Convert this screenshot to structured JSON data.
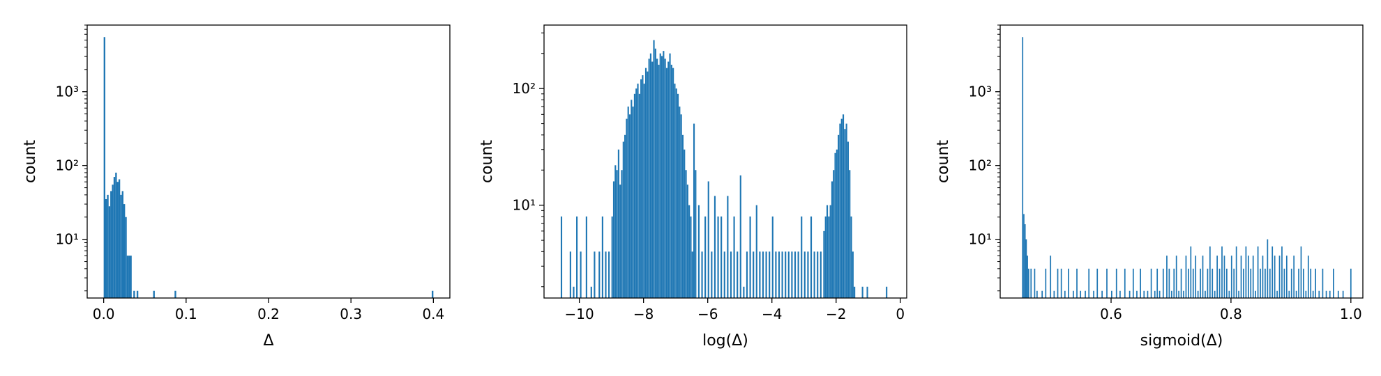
{
  "chart_data": [
    {
      "type": "bar",
      "subtype": "histogram",
      "title": "",
      "xlabel": "Δ",
      "ylabel": "count",
      "yscale": "log",
      "xlim": [
        -0.02,
        0.42
      ],
      "ylim": [
        1.6,
        8000
      ],
      "xticks": [
        0.0,
        0.1,
        0.2,
        0.3,
        0.4
      ],
      "xtick_labels": [
        "0.0",
        "0.1",
        "0.2",
        "0.3",
        "0.4"
      ],
      "yticks": [
        10,
        100,
        1000
      ],
      "ytick_labels": [
        "10¹",
        "10²",
        "10³"
      ],
      "color": "#1f77b4",
      "grid": false,
      "bin_width": 0.002,
      "bins": [
        [
          0.0,
          5500
        ],
        [
          0.002,
          35
        ],
        [
          0.004,
          40
        ],
        [
          0.006,
          28
        ],
        [
          0.008,
          45
        ],
        [
          0.01,
          55
        ],
        [
          0.012,
          70
        ],
        [
          0.014,
          80
        ],
        [
          0.016,
          60
        ],
        [
          0.018,
          65
        ],
        [
          0.02,
          40
        ],
        [
          0.022,
          45
        ],
        [
          0.024,
          30
        ],
        [
          0.026,
          20
        ],
        [
          0.028,
          6
        ],
        [
          0.03,
          6
        ],
        [
          0.032,
          6
        ],
        [
          0.036,
          2
        ],
        [
          0.04,
          2
        ],
        [
          0.06,
          2
        ],
        [
          0.086,
          2
        ],
        [
          0.398,
          2
        ]
      ]
    },
    {
      "type": "bar",
      "subtype": "histogram",
      "title": "",
      "xlabel": "log(Δ)",
      "ylabel": "count",
      "yscale": "log",
      "xlim": [
        -11.1,
        0.2
      ],
      "ylim": [
        1.6,
        350
      ],
      "xticks": [
        -10,
        -8,
        -6,
        -4,
        -2,
        0
      ],
      "xtick_labels": [
        "−10",
        "−8",
        "−6",
        "−4",
        "−2",
        "0"
      ],
      "yticks": [
        10,
        100
      ],
      "ytick_labels": [
        "10¹",
        "10²"
      ],
      "color": "#1f77b4",
      "grid": false,
      "bin_width": 0.0465,
      "bins": [
        [
          -10.58,
          8
        ],
        [
          -10.3,
          4
        ],
        [
          -10.2,
          2
        ],
        [
          -10.1,
          8
        ],
        [
          -9.98,
          4
        ],
        [
          -9.8,
          8
        ],
        [
          -9.65,
          2
        ],
        [
          -9.55,
          4
        ],
        [
          -9.4,
          4
        ],
        [
          -9.3,
          8
        ],
        [
          -9.2,
          4
        ],
        [
          -9.1,
          4
        ],
        [
          -9.0,
          8
        ],
        [
          -8.95,
          16
        ],
        [
          -8.9,
          22
        ],
        [
          -8.85,
          20
        ],
        [
          -8.8,
          30
        ],
        [
          -8.75,
          15
        ],
        [
          -8.7,
          20
        ],
        [
          -8.65,
          35
        ],
        [
          -8.6,
          40
        ],
        [
          -8.55,
          55
        ],
        [
          -8.5,
          70
        ],
        [
          -8.45,
          60
        ],
        [
          -8.4,
          80
        ],
        [
          -8.35,
          70
        ],
        [
          -8.3,
          90
        ],
        [
          -8.25,
          100
        ],
        [
          -8.2,
          110
        ],
        [
          -8.15,
          90
        ],
        [
          -8.1,
          120
        ],
        [
          -8.05,
          130
        ],
        [
          -8.0,
          110
        ],
        [
          -7.95,
          150
        ],
        [
          -7.9,
          140
        ],
        [
          -7.85,
          180
        ],
        [
          -7.8,
          200
        ],
        [
          -7.75,
          170
        ],
        [
          -7.7,
          260
        ],
        [
          -7.65,
          220
        ],
        [
          -7.6,
          180
        ],
        [
          -7.55,
          160
        ],
        [
          -7.5,
          200
        ],
        [
          -7.45,
          190
        ],
        [
          -7.4,
          210
        ],
        [
          -7.35,
          180
        ],
        [
          -7.3,
          150
        ],
        [
          -7.25,
          170
        ],
        [
          -7.2,
          200
        ],
        [
          -7.15,
          160
        ],
        [
          -7.1,
          150
        ],
        [
          -7.05,
          110
        ],
        [
          -7.0,
          100
        ],
        [
          -6.95,
          90
        ],
        [
          -6.9,
          70
        ],
        [
          -6.85,
          60
        ],
        [
          -6.8,
          40
        ],
        [
          -6.75,
          30
        ],
        [
          -6.7,
          20
        ],
        [
          -6.65,
          15
        ],
        [
          -6.6,
          10
        ],
        [
          -6.55,
          8
        ],
        [
          -6.5,
          4
        ],
        [
          -6.45,
          50
        ],
        [
          -6.4,
          20
        ],
        [
          -6.3,
          10
        ],
        [
          -6.2,
          4
        ],
        [
          -6.1,
          8
        ],
        [
          -6.0,
          16
        ],
        [
          -5.9,
          4
        ],
        [
          -5.8,
          12
        ],
        [
          -5.7,
          8
        ],
        [
          -5.6,
          8
        ],
        [
          -5.5,
          4
        ],
        [
          -5.4,
          12
        ],
        [
          -5.3,
          4
        ],
        [
          -5.2,
          8
        ],
        [
          -5.1,
          4
        ],
        [
          -5.0,
          18
        ],
        [
          -4.9,
          2
        ],
        [
          -4.8,
          4
        ],
        [
          -4.7,
          8
        ],
        [
          -4.6,
          4
        ],
        [
          -4.5,
          10
        ],
        [
          -4.4,
          4
        ],
        [
          -4.3,
          4
        ],
        [
          -4.2,
          4
        ],
        [
          -4.1,
          4
        ],
        [
          -4.0,
          8
        ],
        [
          -3.9,
          4
        ],
        [
          -3.8,
          4
        ],
        [
          -3.7,
          4
        ],
        [
          -3.6,
          4
        ],
        [
          -3.5,
          4
        ],
        [
          -3.4,
          4
        ],
        [
          -3.3,
          4
        ],
        [
          -3.2,
          4
        ],
        [
          -3.1,
          8
        ],
        [
          -3.0,
          4
        ],
        [
          -2.9,
          4
        ],
        [
          -2.8,
          8
        ],
        [
          -2.7,
          4
        ],
        [
          -2.6,
          4
        ],
        [
          -2.5,
          4
        ],
        [
          -2.4,
          6
        ],
        [
          -2.35,
          8
        ],
        [
          -2.3,
          10
        ],
        [
          -2.25,
          8
        ],
        [
          -2.2,
          10
        ],
        [
          -2.15,
          16
        ],
        [
          -2.1,
          20
        ],
        [
          -2.05,
          28
        ],
        [
          -2.0,
          30
        ],
        [
          -1.95,
          40
        ],
        [
          -1.9,
          50
        ],
        [
          -1.85,
          55
        ],
        [
          -1.8,
          60
        ],
        [
          -1.75,
          45
        ],
        [
          -1.7,
          50
        ],
        [
          -1.65,
          35
        ],
        [
          -1.6,
          20
        ],
        [
          -1.55,
          8
        ],
        [
          -1.5,
          4
        ],
        [
          -1.45,
          2
        ],
        [
          -1.2,
          2
        ],
        [
          -1.05,
          2
        ],
        [
          -0.45,
          2
        ]
      ]
    },
    {
      "type": "bar",
      "subtype": "histogram",
      "title": "",
      "xlabel": "sigmoid(Δ)",
      "ylabel": "count",
      "yscale": "log",
      "xlim": [
        0.415,
        1.02
      ],
      "ylim": [
        1.6,
        8000
      ],
      "xticks": [
        0.6,
        0.8,
        1.0
      ],
      "xtick_labels": [
        "0.6",
        "0.8",
        "1.0"
      ],
      "yticks": [
        10,
        100,
        1000
      ],
      "ytick_labels": [
        "10¹",
        "10²",
        "10³"
      ],
      "color": "#1f77b4",
      "grid": false,
      "bin_width": 0.002,
      "bins": [
        [
          0.4515,
          5500
        ],
        [
          0.4535,
          22
        ],
        [
          0.4555,
          16
        ],
        [
          0.4575,
          10
        ],
        [
          0.4595,
          6
        ],
        [
          0.4615,
          4
        ],
        [
          0.4655,
          4
        ],
        [
          0.4715,
          4
        ],
        [
          0.4755,
          2
        ],
        [
          0.484,
          2
        ],
        [
          0.49,
          4
        ],
        [
          0.498,
          6
        ],
        [
          0.504,
          2
        ],
        [
          0.51,
          4
        ],
        [
          0.516,
          4
        ],
        [
          0.522,
          2
        ],
        [
          0.528,
          4
        ],
        [
          0.536,
          2
        ],
        [
          0.542,
          4
        ],
        [
          0.548,
          2
        ],
        [
          0.556,
          2
        ],
        [
          0.562,
          4
        ],
        [
          0.57,
          2
        ],
        [
          0.576,
          4
        ],
        [
          0.584,
          2
        ],
        [
          0.592,
          4
        ],
        [
          0.6,
          2
        ],
        [
          0.608,
          4
        ],
        [
          0.614,
          2
        ],
        [
          0.622,
          4
        ],
        [
          0.63,
          2
        ],
        [
          0.636,
          4
        ],
        [
          0.642,
          2
        ],
        [
          0.648,
          4
        ],
        [
          0.654,
          2
        ],
        [
          0.66,
          2
        ],
        [
          0.666,
          4
        ],
        [
          0.672,
          2
        ],
        [
          0.676,
          4
        ],
        [
          0.68,
          2
        ],
        [
          0.686,
          4
        ],
        [
          0.692,
          6
        ],
        [
          0.696,
          4
        ],
        [
          0.7,
          2
        ],
        [
          0.704,
          4
        ],
        [
          0.708,
          6
        ],
        [
          0.712,
          2
        ],
        [
          0.716,
          4
        ],
        [
          0.72,
          2
        ],
        [
          0.724,
          6
        ],
        [
          0.728,
          4
        ],
        [
          0.732,
          8
        ],
        [
          0.736,
          4
        ],
        [
          0.74,
          6
        ],
        [
          0.744,
          2
        ],
        [
          0.748,
          4
        ],
        [
          0.752,
          6
        ],
        [
          0.756,
          2
        ],
        [
          0.76,
          4
        ],
        [
          0.764,
          8
        ],
        [
          0.768,
          4
        ],
        [
          0.772,
          2
        ],
        [
          0.776,
          6
        ],
        [
          0.78,
          4
        ],
        [
          0.784,
          8
        ],
        [
          0.788,
          6
        ],
        [
          0.792,
          4
        ],
        [
          0.796,
          2
        ],
        [
          0.8,
          6
        ],
        [
          0.804,
          4
        ],
        [
          0.808,
          8
        ],
        [
          0.812,
          2
        ],
        [
          0.816,
          6
        ],
        [
          0.82,
          4
        ],
        [
          0.824,
          8
        ],
        [
          0.828,
          6
        ],
        [
          0.832,
          4
        ],
        [
          0.836,
          6
        ],
        [
          0.84,
          2
        ],
        [
          0.844,
          8
        ],
        [
          0.848,
          4
        ],
        [
          0.852,
          6
        ],
        [
          0.856,
          4
        ],
        [
          0.86,
          10
        ],
        [
          0.864,
          4
        ],
        [
          0.868,
          8
        ],
        [
          0.872,
          6
        ],
        [
          0.876,
          2
        ],
        [
          0.88,
          6
        ],
        [
          0.884,
          8
        ],
        [
          0.888,
          4
        ],
        [
          0.892,
          6
        ],
        [
          0.896,
          2
        ],
        [
          0.9,
          4
        ],
        [
          0.904,
          6
        ],
        [
          0.908,
          2
        ],
        [
          0.912,
          4
        ],
        [
          0.916,
          8
        ],
        [
          0.92,
          4
        ],
        [
          0.924,
          2
        ],
        [
          0.928,
          6
        ],
        [
          0.932,
          4
        ],
        [
          0.936,
          2
        ],
        [
          0.94,
          4
        ],
        [
          0.946,
          2
        ],
        [
          0.952,
          4
        ],
        [
          0.958,
          2
        ],
        [
          0.964,
          2
        ],
        [
          0.97,
          4
        ],
        [
          0.978,
          2
        ],
        [
          0.986,
          2
        ],
        [
          0.999,
          4
        ]
      ]
    }
  ]
}
